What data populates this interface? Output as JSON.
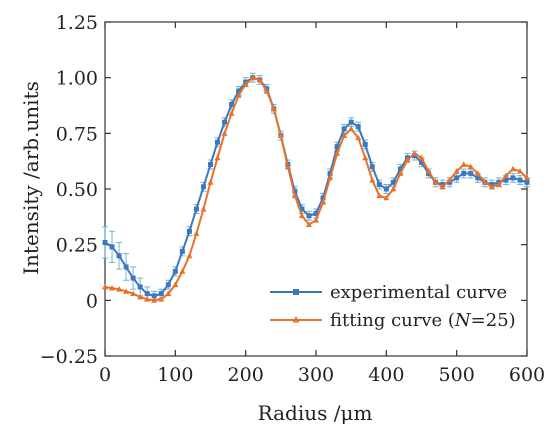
{
  "chart_data": {
    "type": "line",
    "xlabel": "Radius /μm",
    "ylabel": "Intensity /arb.units",
    "xlim": [
      0,
      600
    ],
    "ylim": [
      -0.25,
      1.25
    ],
    "xticks": [
      0,
      100,
      200,
      300,
      400,
      500,
      600
    ],
    "yticks": [
      -0.25,
      0,
      0.25,
      0.5,
      0.75,
      1.0,
      1.25
    ],
    "ytick_labels": [
      "−0.25",
      "0",
      "0.25",
      "0.50",
      "0.75",
      "1.00",
      "1.25"
    ],
    "xtick_labels": [
      "0",
      "100",
      "200",
      "300",
      "400",
      "500",
      "600"
    ],
    "grid": false,
    "legend_position": "lower-right",
    "series": [
      {
        "name": "experimental curve",
        "name_prefix": "experimental curve",
        "color": "#3a78c0",
        "marker": "square",
        "error_bars": true,
        "x": [
          0,
          10,
          20,
          30,
          40,
          50,
          60,
          70,
          80,
          90,
          100,
          110,
          120,
          130,
          140,
          150,
          160,
          170,
          180,
          190,
          200,
          210,
          220,
          230,
          240,
          250,
          260,
          270,
          280,
          290,
          300,
          310,
          320,
          330,
          340,
          350,
          360,
          370,
          380,
          390,
          400,
          410,
          420,
          430,
          440,
          450,
          460,
          470,
          480,
          490,
          500,
          510,
          520,
          530,
          540,
          550,
          560,
          570,
          580,
          590,
          600
        ],
        "y": [
          0.26,
          0.24,
          0.2,
          0.15,
          0.1,
          0.06,
          0.03,
          0.02,
          0.03,
          0.07,
          0.13,
          0.22,
          0.31,
          0.41,
          0.51,
          0.61,
          0.71,
          0.8,
          0.88,
          0.94,
          0.98,
          1.0,
          0.99,
          0.95,
          0.86,
          0.74,
          0.61,
          0.49,
          0.41,
          0.38,
          0.39,
          0.46,
          0.57,
          0.69,
          0.77,
          0.8,
          0.78,
          0.7,
          0.6,
          0.52,
          0.5,
          0.53,
          0.59,
          0.64,
          0.65,
          0.62,
          0.57,
          0.53,
          0.52,
          0.53,
          0.55,
          0.57,
          0.57,
          0.55,
          0.53,
          0.52,
          0.53,
          0.54,
          0.55,
          0.54,
          0.53
        ],
        "err": [
          0.07,
          0.07,
          0.06,
          0.06,
          0.05,
          0.04,
          0.03,
          0.02,
          0.02,
          0.02,
          0.02,
          0.02,
          0.02,
          0.02,
          0.02,
          0.02,
          0.02,
          0.02,
          0.02,
          0.02,
          0.02,
          0.02,
          0.02,
          0.02,
          0.02,
          0.02,
          0.02,
          0.02,
          0.02,
          0.02,
          0.02,
          0.02,
          0.02,
          0.02,
          0.02,
          0.02,
          0.02,
          0.02,
          0.02,
          0.02,
          0.02,
          0.02,
          0.02,
          0.02,
          0.02,
          0.02,
          0.02,
          0.02,
          0.02,
          0.02,
          0.02,
          0.02,
          0.02,
          0.02,
          0.02,
          0.02,
          0.02,
          0.02,
          0.02,
          0.02,
          0.02
        ]
      },
      {
        "name": "fitting curve (N=25)",
        "name_prefix": "fitting curve (",
        "name_italic": "N",
        "name_suffix": "=25)",
        "color": "#e8722a",
        "marker": "triangle",
        "x": [
          0,
          10,
          20,
          30,
          40,
          50,
          60,
          70,
          80,
          90,
          100,
          110,
          120,
          130,
          140,
          150,
          160,
          170,
          180,
          190,
          200,
          210,
          220,
          230,
          240,
          250,
          260,
          270,
          280,
          290,
          300,
          310,
          320,
          330,
          340,
          350,
          360,
          370,
          380,
          390,
          400,
          410,
          420,
          430,
          440,
          450,
          460,
          470,
          480,
          490,
          500,
          510,
          520,
          530,
          540,
          550,
          560,
          570,
          580,
          590,
          600
        ],
        "y": [
          0.06,
          0.055,
          0.05,
          0.04,
          0.03,
          0.015,
          0.005,
          0.0,
          0.005,
          0.03,
          0.07,
          0.13,
          0.2,
          0.3,
          0.41,
          0.53,
          0.64,
          0.75,
          0.84,
          0.92,
          0.97,
          1.0,
          0.99,
          0.94,
          0.86,
          0.74,
          0.6,
          0.47,
          0.38,
          0.34,
          0.36,
          0.44,
          0.55,
          0.66,
          0.74,
          0.77,
          0.73,
          0.64,
          0.54,
          0.47,
          0.46,
          0.5,
          0.57,
          0.63,
          0.66,
          0.64,
          0.58,
          0.53,
          0.51,
          0.54,
          0.58,
          0.61,
          0.6,
          0.57,
          0.53,
          0.51,
          0.52,
          0.56,
          0.59,
          0.58,
          0.55
        ]
      }
    ]
  }
}
